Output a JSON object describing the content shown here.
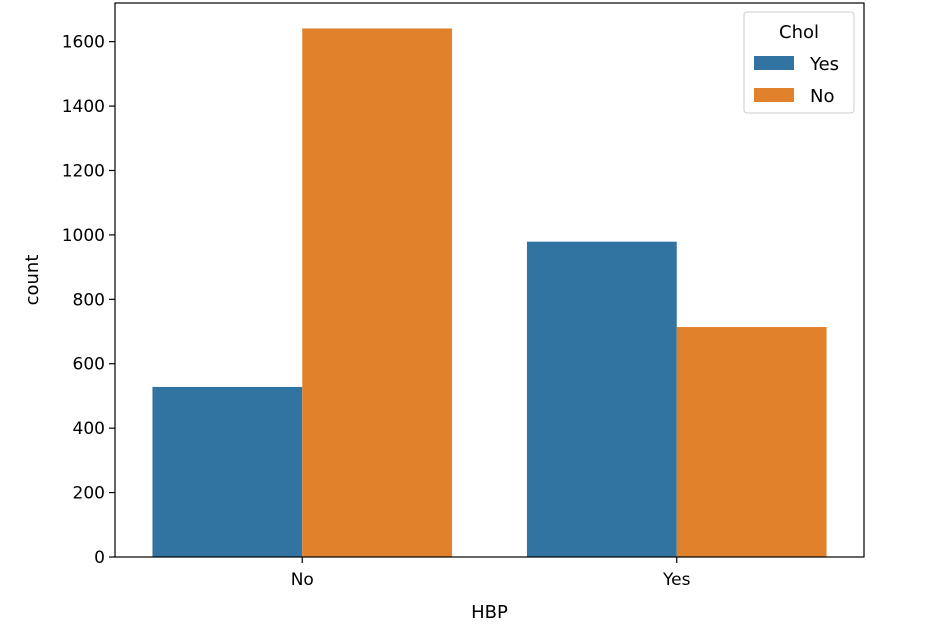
{
  "chart_data": {
    "type": "bar",
    "categories": [
      "No",
      "Yes"
    ],
    "series": [
      {
        "name": "Yes",
        "color": "#3274a1",
        "values": [
          528,
          979
        ]
      },
      {
        "name": "No",
        "color": "#e1812c",
        "values": [
          1641,
          714
        ]
      }
    ],
    "xlabel": "HBP",
    "ylabel": "count",
    "ylim": [
      0,
      1720
    ],
    "yticks": [
      0,
      200,
      400,
      600,
      800,
      1000,
      1200,
      1400,
      1600
    ],
    "legend": {
      "title": "Chol",
      "position": "top-right"
    },
    "grid": false
  }
}
